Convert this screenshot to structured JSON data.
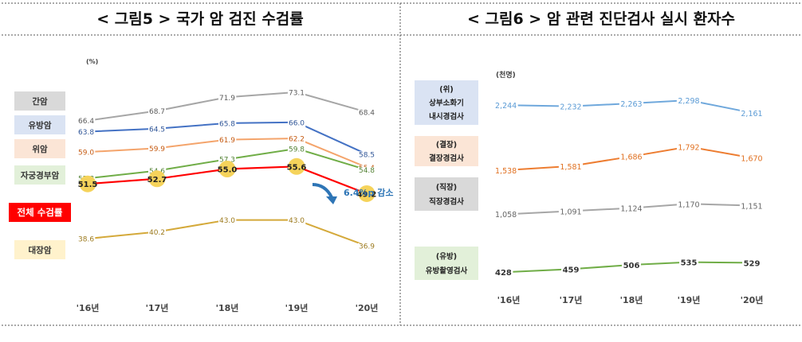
{
  "chart_data": [
    {
      "type": "line",
      "title": "< 그림5 > 국가 암 검진 수검률",
      "unit": "(%)",
      "categories": [
        "'16년",
        "'17년",
        "'18년",
        "'19년",
        "'20년"
      ],
      "ylim": [
        30,
        80
      ],
      "series": [
        {
          "name": "간암",
          "values": [
            66.4,
            68.7,
            71.9,
            73.1,
            68.4
          ],
          "color": "#a6a6a6",
          "labelColor": "#595959",
          "legendBg": "#d9d9d9",
          "legendColor": "#333333"
        },
        {
          "name": "유방암",
          "values": [
            63.8,
            64.5,
            65.8,
            66.0,
            58.5
          ],
          "color": "#4472c4",
          "labelColor": "#2f5597",
          "legendBg": "#dae3f3",
          "legendColor": "#333333"
        },
        {
          "name": "위암",
          "values": [
            59.0,
            59.9,
            61.9,
            62.2,
            55.4
          ],
          "color": "#f4a46b",
          "labelColor": "#c55a11",
          "legendBg": "#fbe5d6",
          "legendColor": "#333333"
        },
        {
          "name": "자궁경부암",
          "values": [
            52.8,
            54.6,
            57.3,
            59.8,
            54.8
          ],
          "color": "#70ad47",
          "labelColor": "#548235",
          "legendBg": "#e2f0d9",
          "legendColor": "#333333"
        },
        {
          "name": "전체 수검률",
          "values": [
            51.5,
            52.7,
            55.0,
            55.6,
            49.2
          ],
          "color": "#ff0000",
          "labelColor": "#222222",
          "legendBg": "#ff0000",
          "legendColor": "#ffffff",
          "highlight": true
        },
        {
          "name": "대장암",
          "values": [
            38.6,
            40.2,
            43.0,
            43.0,
            36.9
          ],
          "color": "#d4a93a",
          "labelColor": "#9c7a1e",
          "legendBg": "#fff2cc",
          "legendColor": "#333333"
        }
      ],
      "annotation": "6.4%p 감소",
      "colors": {
        "highlight_dot": "#f5d35b",
        "annotation": "#2e75b6",
        "arrow": "#2e75b6"
      }
    },
    {
      "type": "line",
      "title": "< 그림6 > 암 관련 진단검사 실시 환자수",
      "unit": "(천명)",
      "categories": [
        "'16년",
        "'17년",
        "'18년",
        "'19년",
        "'20년"
      ],
      "ylim": [
        300,
        2400
      ],
      "series": [
        {
          "name": "(위) 상부소화기 내시경검사",
          "lines": [
            "(위)",
            "상부소화기",
            "내시경검사"
          ],
          "values": [
            2244,
            2232,
            2263,
            2298,
            2161
          ],
          "display": [
            "2,244",
            "2,232",
            "2,263",
            "2,298",
            "2,161"
          ],
          "color": "#6fa8dc",
          "labelColor": "#5b9bd5",
          "legendBg": "#dae3f3"
        },
        {
          "name": "(결장) 결장경검사",
          "lines": [
            "(결장)",
            "결장경검사"
          ],
          "values": [
            1538,
            1581,
            1686,
            1792,
            1670
          ],
          "display": [
            "1,538",
            "1,581",
            "1,686",
            "1,792",
            "1,670"
          ],
          "color": "#ed7d31",
          "labelColor": "#e07020",
          "legendBg": "#fbe5d6"
        },
        {
          "name": "(직장) 직장경검사",
          "lines": [
            "(직장)",
            "직장경검사"
          ],
          "values": [
            1058,
            1091,
            1124,
            1170,
            1151
          ],
          "display": [
            "1,058",
            "1,091",
            "1,124",
            "1,170",
            "1,151"
          ],
          "color": "#a6a6a6",
          "labelColor": "#666666",
          "legendBg": "#d9d9d9"
        },
        {
          "name": "(유방) 유방촬영검사",
          "lines": [
            "(유방)",
            "유방촬영검사"
          ],
          "values": [
            428,
            459,
            506,
            535,
            529
          ],
          "display": [
            "428",
            "459",
            "506",
            "535",
            "529"
          ],
          "color": "#70ad47",
          "labelColor": "#333333",
          "legendBg": "#e2f0d9"
        }
      ]
    }
  ]
}
